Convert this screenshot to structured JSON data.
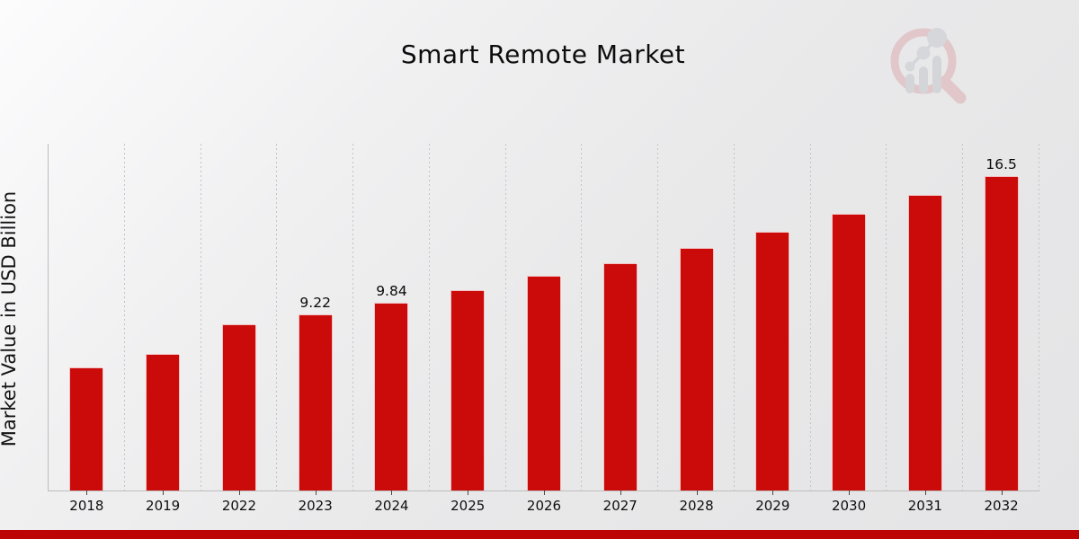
{
  "title": "Smart Remote Market",
  "y_axis_label": "Market Value in USD Billion",
  "watermark_icon": "magnifier-bar-chart-logo",
  "colors": {
    "bar": "#cb0a0a",
    "footer_accent": "#bd0404",
    "gridline": "#c4c4c5",
    "axis_line": "#bdbdbd",
    "text": "#111111"
  },
  "chart_data": {
    "type": "bar",
    "title": "Smart Remote Market",
    "xlabel": "",
    "ylabel": "Market Value in USD Billion",
    "categories": [
      "2018",
      "2019",
      "2022",
      "2023",
      "2024",
      "2025",
      "2026",
      "2027",
      "2028",
      "2029",
      "2030",
      "2031",
      "2032"
    ],
    "values": [
      6.48,
      7.15,
      8.7,
      9.22,
      9.84,
      10.5,
      11.25,
      11.95,
      12.75,
      13.6,
      14.5,
      15.5,
      16.5
    ],
    "data_labels": [
      "",
      "",
      "",
      "9.22",
      "9.84",
      "",
      "",
      "",
      "",
      "",
      "",
      "",
      "16.5"
    ],
    "bar_color": "#cb0a0a",
    "ylim": [
      0,
      18.2
    ],
    "grid": "vertical-dotted-between-categories",
    "legend": "none",
    "y_ticks_shown": false
  }
}
